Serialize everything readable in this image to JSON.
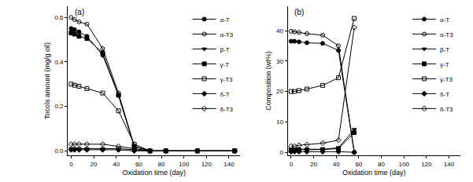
{
  "chart_data": [
    {
      "type": "line",
      "title": "(a)",
      "x_label": "Oxidation time (day)",
      "y_label": "Tocols amount (mg/g oil)",
      "x": [
        0,
        3,
        7,
        14,
        28,
        42,
        56,
        70,
        84,
        112,
        145
      ],
      "xlim": [
        -3,
        150
      ],
      "xticks": [
        0,
        20,
        40,
        60,
        80,
        100,
        120,
        140
      ],
      "ylim": [
        -0.02,
        0.65
      ],
      "yticks": [
        {
          "value": 0,
          "label": "0.0"
        },
        0.2,
        0.4,
        0.6
      ],
      "legend": "top right",
      "grid": false,
      "series": [
        {
          "name": "α-T",
          "color": "#000000",
          "marker": "circle",
          "line_style": "solid",
          "values": [
            0.55,
            0.545,
            0.535,
            0.515,
            0.43,
            0.25,
            0.02,
            0,
            0,
            0,
            0
          ]
        },
        {
          "name": "α-T3",
          "color": "#000000",
          "marker": "circle-open",
          "line_style": "solid",
          "values": [
            0.6,
            0.59,
            0.58,
            0.57,
            0.46,
            0.26,
            0.02,
            0,
            0,
            0,
            0
          ]
        },
        {
          "name": "β-T",
          "color": "#000000",
          "marker": "triangle-down",
          "line_style": "solid",
          "values": [
            0.01,
            0.01,
            0.01,
            0.01,
            0.01,
            0.01,
            0.005,
            0,
            0,
            0,
            0
          ]
        },
        {
          "name": "γ-T",
          "color": "#000000",
          "marker": "square",
          "line_style": "solid",
          "values": [
            0.53,
            0.525,
            0.515,
            0.505,
            0.44,
            0.25,
            0.02,
            0,
            0,
            0,
            0
          ]
        },
        {
          "name": "γ-T3",
          "color": "#000000",
          "marker": "square-open",
          "line_style": "solid",
          "values": [
            0.3,
            0.295,
            0.29,
            0.28,
            0.26,
            0.18,
            0.03,
            0,
            0,
            0,
            0
          ]
        },
        {
          "name": "δ-T",
          "color": "#000000",
          "marker": "diamond",
          "line_style": "solid",
          "values": [
            0.005,
            0.005,
            0.005,
            0.005,
            0.005,
            0.005,
            0,
            0,
            0,
            0,
            0
          ]
        },
        {
          "name": "δ-T3",
          "color": "#000000",
          "marker": "diamond-open",
          "line_style": "solid",
          "values": [
            0.03,
            0.03,
            0.03,
            0.03,
            0.03,
            0.02,
            0.01,
            0,
            0,
            0,
            0
          ]
        }
      ]
    },
    {
      "type": "line",
      "title": "(b)",
      "x_label": "Oxidation time (day)",
      "y_label": "Composition (wt%)",
      "x": [
        0,
        3,
        7,
        14,
        28,
        42,
        56
      ],
      "xlim": [
        -3,
        150
      ],
      "xticks": [
        0,
        20,
        40,
        60,
        80,
        100,
        120,
        140
      ],
      "ylim": [
        -1,
        48
      ],
      "yticks": [
        0,
        10,
        20,
        30,
        40
      ],
      "legend": "top right",
      "grid": false,
      "series": [
        {
          "name": "α-T",
          "color": "#000000",
          "marker": "circle",
          "line_style": "solid",
          "values": [
            36.5,
            36.5,
            36.3,
            36,
            35.8,
            33.5,
            0
          ]
        },
        {
          "name": "α-T3",
          "color": "#000000",
          "marker": "circle-open",
          "line_style": "solid",
          "values": [
            39.8,
            39.6,
            39.4,
            39,
            38.5,
            35,
            0
          ]
        },
        {
          "name": "β-T",
          "color": "#000000",
          "marker": "triangle-down",
          "line_style": "solid",
          "values": [
            1,
            1,
            1,
            1,
            1,
            1.5,
            7.5
          ]
        },
        {
          "name": "γ-T",
          "color": "#000000",
          "marker": "square",
          "line_style": "solid",
          "values": [
            0.8,
            0.8,
            0.8,
            0.8,
            0.9,
            1.2,
            6.5
          ]
        },
        {
          "name": "γ-T3",
          "color": "#000000",
          "marker": "square-open",
          "line_style": "solid",
          "values": [
            20,
            20,
            20.3,
            20.8,
            22,
            24.5,
            44
          ]
        },
        {
          "name": "δ-T",
          "color": "#000000",
          "marker": "diamond",
          "line_style": "solid",
          "values": [
            0.2,
            0.2,
            0.2,
            0.2,
            0.2,
            0.2,
            0
          ]
        },
        {
          "name": "δ-T3",
          "color": "#000000",
          "marker": "diamond-open",
          "line_style": "solid",
          "values": [
            2,
            2,
            2.3,
            2.5,
            3,
            4,
            41
          ]
        }
      ]
    }
  ]
}
